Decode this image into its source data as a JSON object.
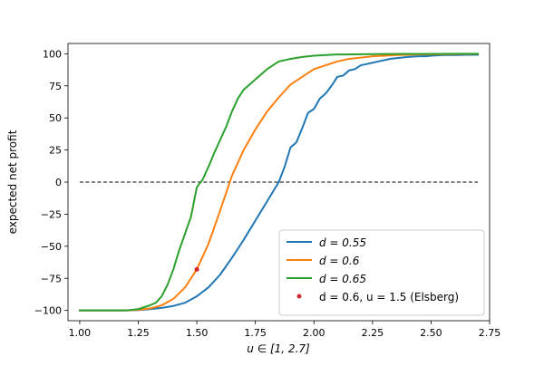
{
  "chart_data": {
    "type": "line",
    "xlabel_prefix": "u ∈ [1, 2.7]",
    "ylabel": "expected net profit",
    "xlim": [
      0.95,
      2.75
    ],
    "ylim": [
      -108,
      108
    ],
    "xticks": [
      1.0,
      1.25,
      1.5,
      1.75,
      2.0,
      2.25,
      2.5,
      2.75
    ],
    "xtick_labels": [
      "1.00",
      "1.25",
      "1.50",
      "1.75",
      "2.00",
      "2.25",
      "2.50",
      "2.75"
    ],
    "yticks": [
      -100,
      -75,
      -50,
      -25,
      0,
      25,
      50,
      75,
      100
    ],
    "ytick_labels": [
      "−100",
      "−75",
      "−50",
      "−25",
      "0",
      "25",
      "50",
      "75",
      "100"
    ],
    "grid": false,
    "legend_position": "lower-right",
    "reference_line": {
      "y": 0,
      "x_start": 1.0,
      "x_end": 2.7,
      "style": "dashed",
      "color": "#000000"
    },
    "series": [
      {
        "name": "d = 0.55",
        "legend_label": "d = 0.55",
        "color": "#1f77b4",
        "x": [
          1.0,
          1.1,
          1.2,
          1.25,
          1.3,
          1.35,
          1.4,
          1.45,
          1.5,
          1.55,
          1.6,
          1.65,
          1.7,
          1.75,
          1.8,
          1.85,
          1.875,
          1.9,
          1.925,
          1.95,
          1.975,
          2.0,
          2.025,
          2.05,
          2.075,
          2.1,
          2.125,
          2.15,
          2.175,
          2.2,
          2.225,
          2.25,
          2.275,
          2.3,
          2.325,
          2.35,
          2.375,
          2.4,
          2.425,
          2.45,
          2.475,
          2.5,
          2.55,
          2.6,
          2.65,
          2.7
        ],
        "y": [
          -100,
          -100,
          -100,
          -99.7,
          -99,
          -98,
          -96.5,
          -94,
          -89,
          -82,
          -72,
          -59,
          -45,
          -30,
          -15,
          0,
          12,
          27,
          31,
          42,
          54,
          57,
          65,
          69,
          75,
          82,
          83,
          87,
          88,
          91,
          92,
          93,
          94,
          95,
          96,
          96.5,
          97,
          97.5,
          97.8,
          98,
          98,
          98.5,
          99,
          99,
          99.2,
          99.3
        ]
      },
      {
        "name": "d = 0.6",
        "legend_label": "d = 0.6",
        "color": "#ff7f0e",
        "x": [
          1.0,
          1.1,
          1.2,
          1.25,
          1.3,
          1.35,
          1.4,
          1.45,
          1.5,
          1.55,
          1.6,
          1.65,
          1.7,
          1.75,
          1.8,
          1.85,
          1.9,
          1.95,
          2.0,
          2.05,
          2.1,
          2.15,
          2.2,
          2.25,
          2.3,
          2.35,
          2.4,
          2.45,
          2.5,
          2.55,
          2.6,
          2.65,
          2.7
        ],
        "y": [
          -100,
          -100,
          -100,
          -99.5,
          -98.5,
          -96,
          -91,
          -82,
          -68,
          -48,
          -22,
          5,
          25,
          41,
          55,
          66,
          76,
          82,
          88,
          91,
          94,
          96,
          97,
          98,
          98.5,
          99,
          99.2,
          99.4,
          99.5,
          99.6,
          99.7,
          99.8,
          99.9
        ]
      },
      {
        "name": "d = 0.65",
        "legend_label": "d = 0.65",
        "color": "#2ca02c",
        "x": [
          1.0,
          1.1,
          1.2,
          1.25,
          1.3,
          1.325,
          1.35,
          1.375,
          1.4,
          1.425,
          1.45,
          1.475,
          1.5,
          1.525,
          1.55,
          1.575,
          1.6,
          1.625,
          1.65,
          1.675,
          1.7,
          1.725,
          1.75,
          1.775,
          1.8,
          1.825,
          1.85,
          1.875,
          1.9,
          1.95,
          2.0,
          2.05,
          2.1,
          2.2,
          2.3,
          2.4,
          2.5,
          2.6,
          2.7
        ],
        "y": [
          -100,
          -100,
          -100,
          -99,
          -96,
          -94,
          -89,
          -80,
          -68,
          -53,
          -40,
          -27,
          -4,
          2,
          12,
          23,
          33,
          43,
          55,
          65,
          72,
          76,
          80,
          84,
          88,
          91,
          94,
          95,
          96,
          97.5,
          98.5,
          99,
          99.4,
          99.6,
          99.8,
          99.9,
          99.9,
          100,
          100
        ]
      }
    ],
    "points": [
      {
        "name": "d = 0.6, u = 1.5 (Elsberg)",
        "legend_label": "d = 0.6, u = 1.5 (Elsberg)",
        "color": "#d62728",
        "x": 1.5,
        "y": -68
      }
    ]
  }
}
